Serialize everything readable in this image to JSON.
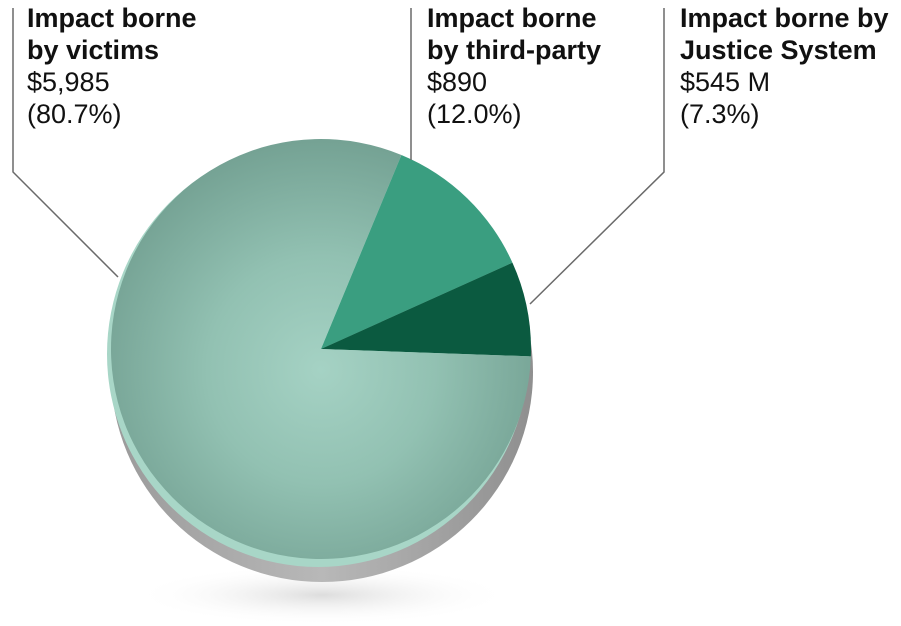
{
  "chart_data": {
    "type": "pie",
    "title": "",
    "categories": [
      "Impact borne by victims",
      "Impact borne by third-party",
      "Impact borne by Justice System"
    ],
    "values": [
      80.7,
      12.0,
      7.3
    ],
    "slices": [
      {
        "name": "Impact borne\nby victims",
        "value_label": "$5,985",
        "pct_label": "(80.7%)",
        "percent": 80.7,
        "color": "#86b8a9"
      },
      {
        "name": "Impact borne\nby third-party",
        "value_label": "$890",
        "pct_label": "(12.0%)",
        "percent": 12.0,
        "color": "#3a9e80"
      },
      {
        "name": "Impact borne by\nJustice System",
        "value_label": "$545 M",
        "pct_label": "(7.3%)",
        "percent": 7.3,
        "color": "#0b5a40"
      }
    ],
    "legend": "none",
    "grid": false
  }
}
